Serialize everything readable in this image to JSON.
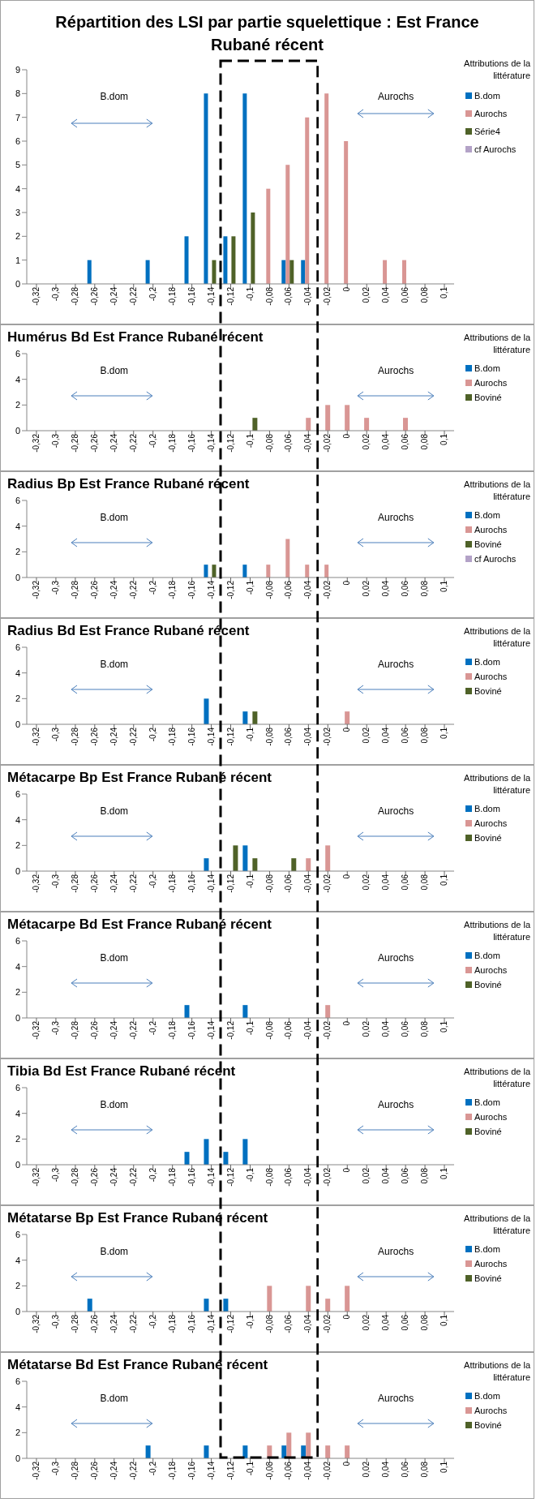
{
  "chart_data": [
    {
      "type": "bar",
      "title": "Répartition des LSI par partie squelettique : Est France Rubané récent",
      "categories": [
        "-0,32",
        "-0,3",
        "-0,28",
        "-0,26",
        "-0,24",
        "-0,22",
        "-0,2",
        "-0,18",
        "-0,16",
        "-0,14",
        "-0,12",
        "-0,1",
        "-0,08",
        "-0,06",
        "-0,04",
        "-0,02",
        "0",
        "0,02",
        "0,04",
        "0,06",
        "0,08",
        "0,1"
      ],
      "ylim": [
        0,
        9
      ],
      "yticks": [
        0,
        1,
        2,
        3,
        4,
        5,
        6,
        7,
        8,
        9
      ],
      "legend": "right",
      "legend_title": "Attributions de la littérature",
      "annotations": [
        "B.dom",
        "Aurochs"
      ],
      "series": [
        {
          "name": "B.dom",
          "color": "#0070c0",
          "values": [
            null,
            null,
            null,
            1,
            null,
            null,
            1,
            null,
            2,
            8,
            2,
            8,
            null,
            1,
            1,
            null,
            null,
            null,
            null,
            null,
            null,
            null
          ]
        },
        {
          "name": "Aurochs",
          "color": "#d99694",
          "values": [
            null,
            null,
            null,
            null,
            null,
            null,
            null,
            null,
            null,
            null,
            null,
            null,
            4,
            5,
            7,
            8,
            6,
            null,
            1,
            1,
            null,
            null
          ]
        },
        {
          "name": "Série4",
          "color": "#4f6228",
          "values": [
            null,
            null,
            null,
            null,
            null,
            null,
            null,
            null,
            null,
            1,
            2,
            3,
            null,
            1,
            null,
            null,
            null,
            null,
            null,
            null,
            null,
            null
          ]
        },
        {
          "name": "cf Aurochs",
          "color": "#b3a2c7",
          "values": [
            null,
            null,
            null,
            null,
            null,
            null,
            null,
            null,
            null,
            null,
            null,
            null,
            null,
            null,
            null,
            null,
            null,
            null,
            null,
            null,
            null,
            null
          ]
        }
      ]
    },
    {
      "type": "bar",
      "title": "Humérus Bd Est France Rubané récent",
      "categories": [
        "-0,32",
        "-0,3",
        "-0,28",
        "-0,26",
        "-0,24",
        "-0,22",
        "-0,2",
        "-0,18",
        "-0,16",
        "-0,14",
        "-0,12",
        "-0,1",
        "-0,08",
        "-0,06",
        "-0,04",
        "-0,02",
        "0",
        "0,02",
        "0,04",
        "0,06",
        "0,08",
        "0,1"
      ],
      "ylim": [
        0,
        6
      ],
      "yticks": [
        0,
        2,
        4,
        6
      ],
      "legend": "right",
      "legend_title": "Attributions de la littérature",
      "annotations": [
        "B.dom",
        "Aurochs"
      ],
      "series": [
        {
          "name": "B.dom",
          "color": "#0070c0",
          "values": [
            null,
            null,
            null,
            null,
            null,
            null,
            null,
            null,
            null,
            null,
            null,
            null,
            null,
            null,
            null,
            null,
            null,
            null,
            null,
            null,
            null,
            null
          ]
        },
        {
          "name": "Aurochs",
          "color": "#d99694",
          "values": [
            null,
            null,
            null,
            null,
            null,
            null,
            null,
            null,
            null,
            null,
            null,
            null,
            null,
            null,
            1,
            2,
            2,
            1,
            null,
            1,
            null,
            null
          ]
        },
        {
          "name": "Boviné",
          "color": "#4f6228",
          "values": [
            null,
            null,
            null,
            null,
            null,
            null,
            null,
            null,
            null,
            null,
            null,
            1,
            null,
            null,
            null,
            null,
            null,
            null,
            null,
            null,
            null,
            null
          ]
        }
      ]
    },
    {
      "type": "bar",
      "title": "Radius Bp Est France Rubané récent",
      "categories": [
        "-0,32",
        "-0,3",
        "-0,28",
        "-0,26",
        "-0,24",
        "-0,22",
        "-0,2",
        "-0,18",
        "-0,16",
        "-0,14",
        "-0,12",
        "-0,1",
        "-0,08",
        "-0,06",
        "-0,04",
        "-0,02",
        "0",
        "0,02",
        "0,04",
        "0,06",
        "0,08",
        "0,1"
      ],
      "ylim": [
        0,
        6
      ],
      "yticks": [
        0,
        2,
        4,
        6
      ],
      "legend": "right",
      "legend_title": "Attributions de la littérature",
      "annotations": [
        "B.dom",
        "Aurochs"
      ],
      "series": [
        {
          "name": "B.dom",
          "color": "#0070c0",
          "values": [
            null,
            null,
            null,
            null,
            null,
            null,
            null,
            null,
            null,
            1,
            null,
            1,
            null,
            null,
            null,
            null,
            null,
            null,
            null,
            null,
            null,
            null
          ]
        },
        {
          "name": "Aurochs",
          "color": "#d99694",
          "values": [
            null,
            null,
            null,
            null,
            null,
            null,
            null,
            null,
            null,
            null,
            null,
            null,
            1,
            3,
            1,
            1,
            null,
            null,
            null,
            null,
            null,
            null
          ]
        },
        {
          "name": "Boviné",
          "color": "#4f6228",
          "values": [
            null,
            null,
            null,
            null,
            null,
            null,
            null,
            null,
            null,
            1,
            null,
            null,
            null,
            null,
            null,
            null,
            null,
            null,
            null,
            null,
            null,
            null
          ]
        },
        {
          "name": "cf Aurochs",
          "color": "#b3a2c7",
          "values": [
            null,
            null,
            null,
            null,
            null,
            null,
            null,
            null,
            null,
            null,
            null,
            null,
            null,
            null,
            null,
            null,
            null,
            null,
            null,
            null,
            null,
            null
          ]
        }
      ]
    },
    {
      "type": "bar",
      "title": "Radius Bd Est France Rubané récent",
      "categories": [
        "-0,32",
        "-0,3",
        "-0,28",
        "-0,26",
        "-0,24",
        "-0,22",
        "-0,2",
        "-0,18",
        "-0,16",
        "-0,14",
        "-0,12",
        "-0,1",
        "-0,08",
        "-0,06",
        "-0,04",
        "-0,02",
        "0",
        "0,02",
        "0,04",
        "0,06",
        "0,08",
        "0,1"
      ],
      "ylim": [
        0,
        6
      ],
      "yticks": [
        0,
        2,
        4,
        6
      ],
      "legend": "right",
      "legend_title": "Attributions de la littérature",
      "annotations": [
        "B.dom",
        "Aurochs"
      ],
      "series": [
        {
          "name": "B.dom",
          "color": "#0070c0",
          "values": [
            null,
            null,
            null,
            null,
            null,
            null,
            null,
            null,
            null,
            2,
            null,
            1,
            null,
            null,
            null,
            null,
            null,
            null,
            null,
            null,
            null,
            null
          ]
        },
        {
          "name": "Aurochs",
          "color": "#d99694",
          "values": [
            null,
            null,
            null,
            null,
            null,
            null,
            null,
            null,
            null,
            null,
            null,
            null,
            null,
            null,
            null,
            null,
            1,
            null,
            null,
            null,
            null,
            null
          ]
        },
        {
          "name": "Boviné",
          "color": "#4f6228",
          "values": [
            null,
            null,
            null,
            null,
            null,
            null,
            null,
            null,
            null,
            null,
            null,
            1,
            null,
            null,
            null,
            null,
            null,
            null,
            null,
            null,
            null,
            null
          ]
        }
      ]
    },
    {
      "type": "bar",
      "title": "Métacarpe Bp Est France Rubané récent",
      "categories": [
        "-0,32",
        "-0,3",
        "-0,28",
        "-0,26",
        "-0,24",
        "-0,22",
        "-0,2",
        "-0,18",
        "-0,16",
        "-0,14",
        "-0,12",
        "-0,1",
        "-0,08",
        "-0,06",
        "-0,04",
        "-0,02",
        "0",
        "0,02",
        "0,04",
        "0,06",
        "0,08",
        "0,1"
      ],
      "ylim": [
        0,
        6
      ],
      "yticks": [
        0,
        2,
        4,
        6
      ],
      "legend": "right",
      "legend_title": "Attributions de la littérature",
      "annotations": [
        "B.dom",
        "Aurochs"
      ],
      "series": [
        {
          "name": "B.dom",
          "color": "#0070c0",
          "values": [
            null,
            null,
            null,
            null,
            null,
            null,
            null,
            null,
            null,
            1,
            null,
            2,
            null,
            null,
            null,
            null,
            null,
            null,
            null,
            null,
            null,
            null
          ]
        },
        {
          "name": "Aurochs",
          "color": "#d99694",
          "values": [
            null,
            null,
            null,
            null,
            null,
            null,
            null,
            null,
            null,
            null,
            null,
            null,
            null,
            null,
            1,
            2,
            null,
            null,
            null,
            null,
            null,
            null
          ]
        },
        {
          "name": "Boviné",
          "color": "#4f6228",
          "values": [
            null,
            null,
            null,
            null,
            null,
            null,
            null,
            null,
            null,
            null,
            2,
            1,
            null,
            1,
            null,
            null,
            null,
            null,
            null,
            null,
            null,
            null
          ]
        }
      ]
    },
    {
      "type": "bar",
      "title": "Métacarpe Bd Est France Rubané récent",
      "categories": [
        "-0,32",
        "-0,3",
        "-0,28",
        "-0,26",
        "-0,24",
        "-0,22",
        "-0,2",
        "-0,18",
        "-0,16",
        "-0,14",
        "-0,12",
        "-0,1",
        "-0,08",
        "-0,06",
        "-0,04",
        "-0,02",
        "0",
        "0,02",
        "0,04",
        "0,06",
        "0,08",
        "0,1"
      ],
      "ylim": [
        0,
        6
      ],
      "yticks": [
        0,
        2,
        4,
        6
      ],
      "legend": "right",
      "legend_title": "Attributions de la littérature",
      "annotations": [
        "B.dom",
        "Aurochs"
      ],
      "series": [
        {
          "name": "B.dom",
          "color": "#0070c0",
          "values": [
            null,
            null,
            null,
            null,
            null,
            null,
            null,
            null,
            1,
            null,
            null,
            1,
            null,
            null,
            null,
            null,
            null,
            null,
            null,
            null,
            null,
            null
          ]
        },
        {
          "name": "Aurochs",
          "color": "#d99694",
          "values": [
            null,
            null,
            null,
            null,
            null,
            null,
            null,
            null,
            null,
            null,
            null,
            null,
            null,
            null,
            null,
            1,
            null,
            null,
            null,
            null,
            null,
            null
          ]
        },
        {
          "name": "Boviné",
          "color": "#4f6228",
          "values": [
            null,
            null,
            null,
            null,
            null,
            null,
            null,
            null,
            null,
            null,
            null,
            null,
            null,
            null,
            null,
            null,
            null,
            null,
            null,
            null,
            null,
            null
          ]
        }
      ]
    },
    {
      "type": "bar",
      "title": "Tibia Bd Est France Rubané récent",
      "categories": [
        "-0,32",
        "-0,3",
        "-0,28",
        "-0,26",
        "-0,24",
        "-0,22",
        "-0,2",
        "-0,18",
        "-0,16",
        "-0,14",
        "-0,12",
        "-0,1",
        "-0,08",
        "-0,06",
        "-0,04",
        "-0,02",
        "0",
        "0,02",
        "0,04",
        "0,06",
        "0,08",
        "0,1"
      ],
      "ylim": [
        0,
        6
      ],
      "yticks": [
        0,
        2,
        4,
        6
      ],
      "legend": "right",
      "legend_title": "Attributions de la littérature",
      "annotations": [
        "B.dom",
        "Aurochs"
      ],
      "series": [
        {
          "name": "B.dom",
          "color": "#0070c0",
          "values": [
            null,
            null,
            null,
            null,
            null,
            null,
            null,
            null,
            1,
            2,
            1,
            2,
            null,
            null,
            null,
            null,
            null,
            null,
            null,
            null,
            null,
            null
          ]
        },
        {
          "name": "Aurochs",
          "color": "#d99694",
          "values": [
            null,
            null,
            null,
            null,
            null,
            null,
            null,
            null,
            null,
            null,
            null,
            null,
            null,
            null,
            null,
            null,
            null,
            null,
            null,
            null,
            null,
            null
          ]
        },
        {
          "name": "Boviné",
          "color": "#4f6228",
          "values": [
            null,
            null,
            null,
            null,
            null,
            null,
            null,
            null,
            null,
            null,
            null,
            null,
            null,
            null,
            null,
            null,
            null,
            null,
            null,
            null,
            null,
            null
          ]
        }
      ]
    },
    {
      "type": "bar",
      "title": "Métatarse Bp Est France Rubané récent",
      "categories": [
        "-0,32",
        "-0,3",
        "-0,28",
        "-0,26",
        "-0,24",
        "-0,22",
        "-0,2",
        "-0,18",
        "-0,16",
        "-0,14",
        "-0,12",
        "-0,1",
        "-0,08",
        "-0,06",
        "-0,04",
        "-0,02",
        "0",
        "0,02",
        "0,04",
        "0,06",
        "0,08",
        "0,1"
      ],
      "ylim": [
        0,
        6
      ],
      "yticks": [
        0,
        2,
        4,
        6
      ],
      "legend": "right",
      "legend_title": "Attributions de la littérature",
      "annotations": [
        "B.dom",
        "Aurochs"
      ],
      "series": [
        {
          "name": "B.dom",
          "color": "#0070c0",
          "values": [
            null,
            null,
            null,
            1,
            null,
            null,
            null,
            null,
            null,
            1,
            1,
            null,
            null,
            null,
            null,
            null,
            null,
            null,
            null,
            null,
            null,
            null
          ]
        },
        {
          "name": "Aurochs",
          "color": "#d99694",
          "values": [
            null,
            null,
            null,
            null,
            null,
            null,
            null,
            null,
            null,
            null,
            null,
            null,
            2,
            null,
            2,
            1,
            2,
            null,
            null,
            null,
            null,
            null
          ]
        },
        {
          "name": "Boviné",
          "color": "#4f6228",
          "values": [
            null,
            null,
            null,
            null,
            null,
            null,
            null,
            null,
            null,
            null,
            null,
            null,
            null,
            null,
            null,
            null,
            null,
            null,
            null,
            null,
            null,
            null
          ]
        }
      ]
    },
    {
      "type": "bar",
      "title": "Métatarse Bd Est France Rubané récent",
      "categories": [
        "-0,32",
        "-0,3",
        "-0,28",
        "-0,26",
        "-0,24",
        "-0,22",
        "-0,2",
        "-0,18",
        "-0,16",
        "-0,14",
        "-0,12",
        "-0,1",
        "-0,08",
        "-0,06",
        "-0,04",
        "-0,02",
        "0",
        "0,02",
        "0,04",
        "0,06",
        "0,08",
        "0,1"
      ],
      "ylim": [
        0,
        6
      ],
      "yticks": [
        0,
        2,
        4,
        6
      ],
      "legend": "right",
      "legend_title": "Attributions de la littérature",
      "annotations": [
        "B.dom",
        "Aurochs"
      ],
      "series": [
        {
          "name": "B.dom",
          "color": "#0070c0",
          "values": [
            null,
            null,
            null,
            null,
            null,
            null,
            1,
            null,
            null,
            1,
            null,
            1,
            null,
            1,
            1,
            null,
            null,
            null,
            null,
            null,
            null,
            null
          ]
        },
        {
          "name": "Aurochs",
          "color": "#d99694",
          "values": [
            null,
            null,
            null,
            null,
            null,
            null,
            null,
            null,
            null,
            null,
            null,
            null,
            1,
            2,
            2,
            1,
            1,
            null,
            null,
            null,
            null,
            null
          ]
        },
        {
          "name": "Boviné",
          "color": "#4f6228",
          "values": [
            null,
            null,
            null,
            null,
            null,
            null,
            null,
            null,
            null,
            null,
            null,
            null,
            null,
            null,
            null,
            null,
            null,
            null,
            null,
            null,
            null,
            null
          ]
        }
      ]
    }
  ]
}
